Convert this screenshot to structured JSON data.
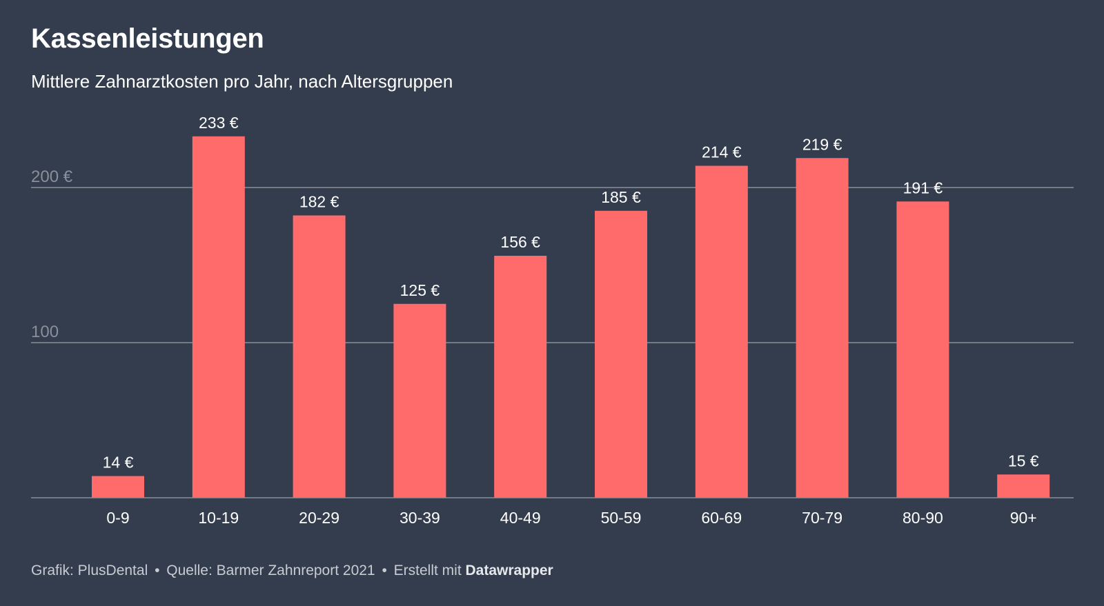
{
  "title": "Kassenleistungen",
  "subtitle": "Mittlere Zahnarztkosten pro Jahr, nach Altersgruppen",
  "footer": {
    "grafik": "Grafik: PlusDental",
    "separator": "•",
    "quelle": "Quelle: Barmer Zahnreport 2021",
    "erstellt": "Erstellt mit",
    "tool": "Datawrapper"
  },
  "colors": {
    "background": "#333d4d",
    "bar": "#ff6b6b",
    "grid": "#8a8f99",
    "axis_label": "#8a8f99",
    "text": "#ffffff"
  },
  "chart_data": {
    "type": "bar",
    "title": "Kassenleistungen",
    "subtitle": "Mittlere Zahnarztkosten pro Jahr, nach Altersgruppen",
    "categories": [
      "0-9",
      "10-19",
      "20-29",
      "30-39",
      "40-49",
      "50-59",
      "60-69",
      "70-79",
      "80-90",
      "90+"
    ],
    "values": [
      14,
      233,
      182,
      125,
      156,
      185,
      214,
      219,
      191,
      15
    ],
    "data_labels": [
      "14 €",
      "233 €",
      "182 €",
      "125 €",
      "156 €",
      "185 €",
      "214 €",
      "219 €",
      "191 €",
      "15 €"
    ],
    "yticks": [
      100,
      200
    ],
    "ytick_labels": [
      "100",
      "200 €"
    ],
    "ylim": [
      0,
      233
    ],
    "xlabel": "",
    "ylabel": "",
    "grid": true
  }
}
